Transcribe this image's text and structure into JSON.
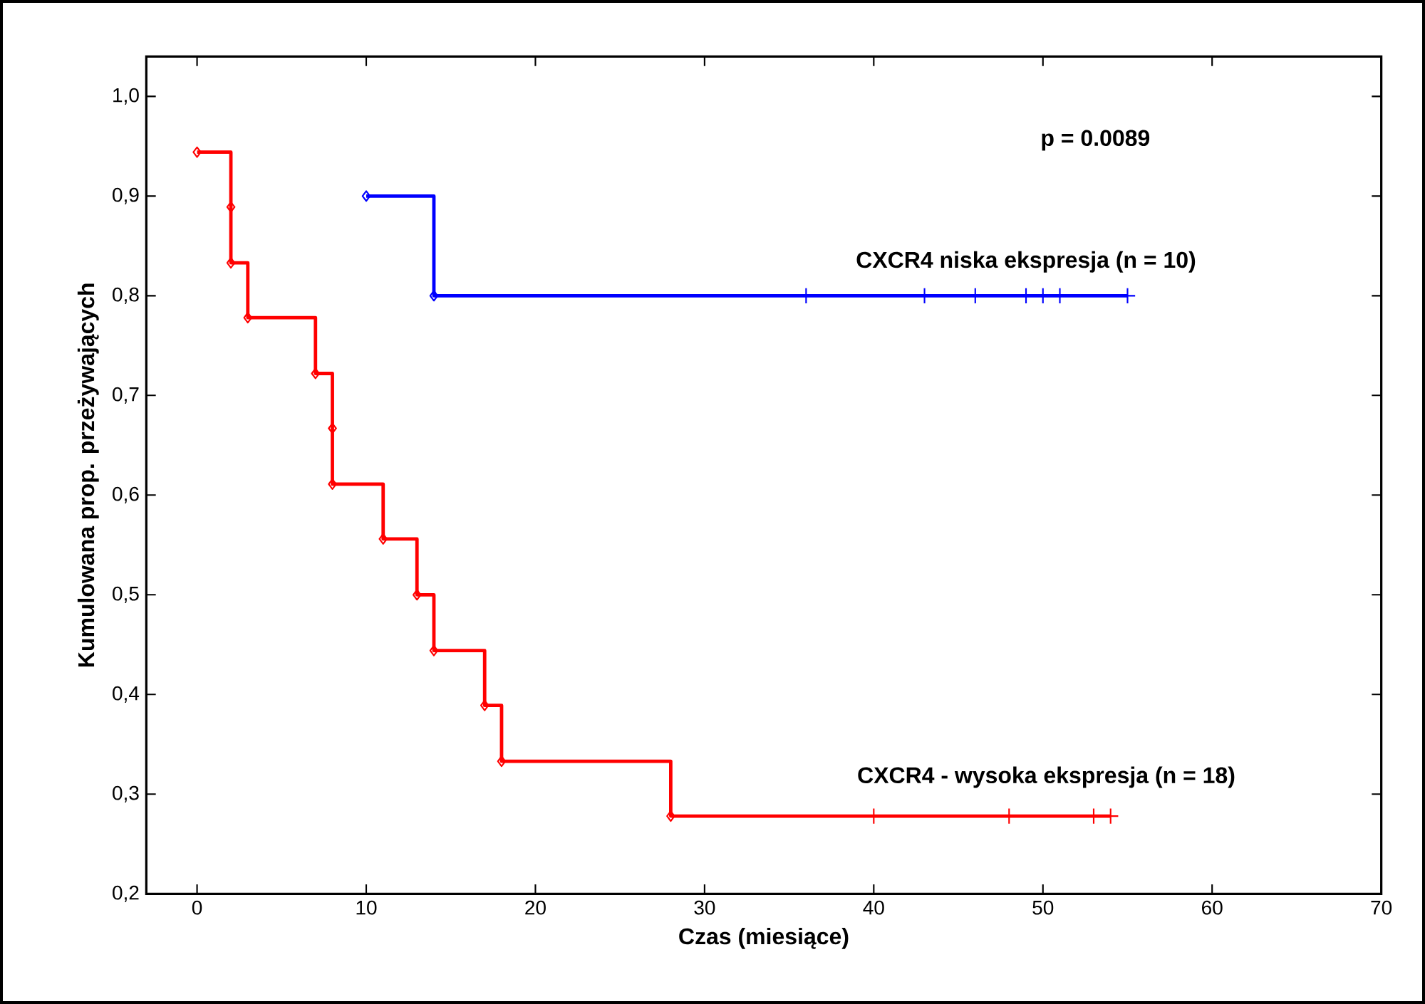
{
  "chart_data": {
    "type": "step",
    "xlabel": "Czas (miesiące)",
    "ylabel": "Kumulowana prop. przeżywających",
    "xlim": [
      -3,
      70
    ],
    "ylim": [
      0.2,
      1.04
    ],
    "xticks": [
      0,
      10,
      20,
      30,
      40,
      50,
      60,
      70
    ],
    "yticks": [
      {
        "value": 0.2,
        "label": "0,2"
      },
      {
        "value": 0.3,
        "label": "0,3"
      },
      {
        "value": 0.4,
        "label": "0,4"
      },
      {
        "value": 0.5,
        "label": "0,5"
      },
      {
        "value": 0.6,
        "label": "0,6"
      },
      {
        "value": 0.7,
        "label": "0,7"
      },
      {
        "value": 0.8,
        "label": "0,8"
      },
      {
        "value": 0.9,
        "label": "0,9"
      },
      {
        "value": 1.0,
        "label": "1,0"
      }
    ],
    "marker": "diamond",
    "line_style": "solid",
    "annotations": [
      "p = 0.0089"
    ],
    "series": [
      {
        "name": "CXCR4 niska ekspresja (n = 10)",
        "color": "#0000ff",
        "x": [
          10,
          14,
          55
        ],
        "values": [
          0.9,
          0.8,
          0.8
        ]
      },
      {
        "name": "CXCR4 - wysoka ekspresja (n = 18)",
        "color": "#ff0000",
        "x": [
          0,
          2,
          3,
          7,
          8,
          11,
          13,
          14,
          17,
          18,
          28,
          54
        ],
        "values": [
          0.944,
          0.833,
          0.778,
          0.722,
          0.611,
          0.556,
          0.5,
          0.444,
          0.389,
          0.333,
          0.278,
          0.278
        ]
      },
      {
        "color": "#ff0000",
        "type": "scatter",
        "marker": "diamond",
        "x": [
          2,
          8
        ],
        "values": [
          0.889,
          0.667
        ]
      },
      {
        "color": "#0000ff",
        "type": "scatter",
        "marker": "cross",
        "x": [
          36,
          43,
          46,
          49,
          50,
          51,
          55
        ],
        "values": [
          0.8,
          0.8,
          0.8,
          0.8,
          0.8,
          0.8,
          0.8
        ]
      },
      {
        "color": "#ff0000",
        "type": "scatter",
        "marker": "cross",
        "x": [
          40,
          48,
          53,
          54
        ],
        "values": [
          0.278,
          0.278,
          0.278,
          0.278
        ]
      }
    ]
  }
}
